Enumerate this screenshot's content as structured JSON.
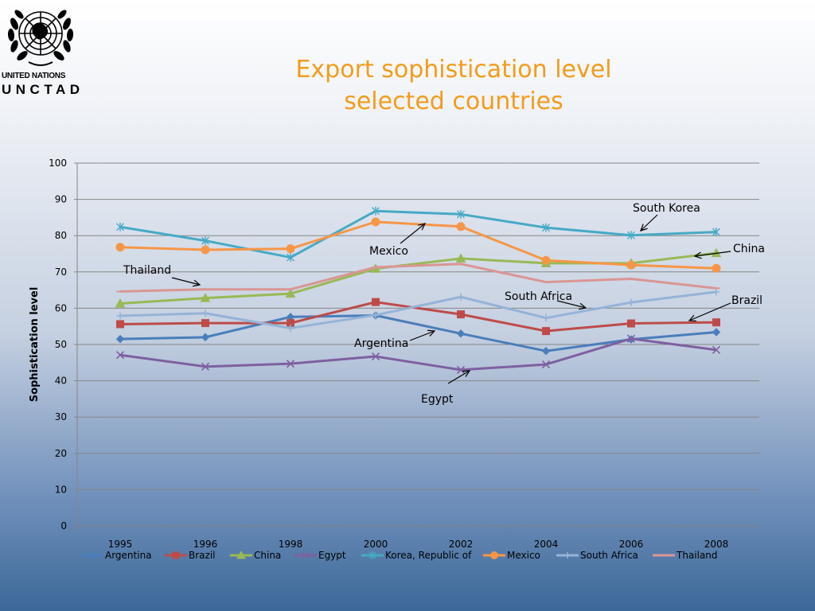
{
  "logo": {
    "org_line": "UNITED NATIONS",
    "acronym": "UNCTAD"
  },
  "colors": {
    "title": "#f39c1a"
  },
  "chart_data": {
    "type": "line",
    "title": [
      "Export sophistication level",
      "selected countries"
    ],
    "xlabel": "",
    "ylabel": "Sophistication level",
    "x": [
      "1995",
      "1996",
      "1998",
      "2000",
      "2002",
      "2004",
      "2006",
      "2008"
    ],
    "ylim": [
      0,
      100
    ],
    "yticks": [
      "0",
      "10",
      "20",
      "30",
      "40",
      "50",
      "60",
      "70",
      "80",
      "90",
      "100"
    ],
    "grid": true,
    "legend_position": "bottom",
    "series": [
      {
        "name": "Argentina",
        "color": "#4a7ebb",
        "marker": "diamond",
        "values": [
          51.5,
          52.0,
          57.6,
          58.0,
          53.0,
          48.2,
          51.4,
          53.4
        ]
      },
      {
        "name": "Brazil",
        "color": "#be4b48",
        "marker": "square",
        "values": [
          55.6,
          55.9,
          55.9,
          61.7,
          58.3,
          53.7,
          55.8,
          56.1
        ]
      },
      {
        "name": "China",
        "color": "#98b954",
        "marker": "triangle",
        "values": [
          61.3,
          62.8,
          64.0,
          70.9,
          73.7,
          72.4,
          72.4,
          75.2
        ]
      },
      {
        "name": "Egypt",
        "color": "#7d60a0",
        "marker": "x",
        "values": [
          47.1,
          43.9,
          44.7,
          46.7,
          43.0,
          44.5,
          51.6,
          48.5
        ]
      },
      {
        "name": "Korea, Republic of",
        "color": "#46aac5",
        "marker": "star",
        "values": [
          82.4,
          78.6,
          74.0,
          86.8,
          85.9,
          82.2,
          80.1,
          81.0
        ]
      },
      {
        "name": "Mexico",
        "color": "#f79646",
        "marker": "circle",
        "values": [
          76.8,
          76.1,
          76.4,
          83.8,
          82.5,
          73.2,
          71.9,
          71.0
        ]
      },
      {
        "name": "South Africa",
        "color": "#95b3d7",
        "marker": "plus",
        "values": [
          57.9,
          58.6,
          54.5,
          58.1,
          63.1,
          57.3,
          61.6,
          64.5
        ]
      },
      {
        "name": "Thailand",
        "color": "#d99694",
        "marker": "dash",
        "values": [
          64.6,
          65.2,
          65.2,
          71.3,
          72.2,
          67.2,
          68.1,
          65.5
        ]
      }
    ],
    "annotations": [
      {
        "text": "South Korea",
        "series": "Korea, Republic of",
        "at": "2006"
      },
      {
        "text": "China",
        "series": "China",
        "at": "2008"
      },
      {
        "text": "Mexico",
        "series": "Mexico",
        "at": "2002"
      },
      {
        "text": "Thailand",
        "series": "Thailand",
        "at": "1996"
      },
      {
        "text": "South Africa",
        "series": "South Africa",
        "at": "2004"
      },
      {
        "text": "Brazil",
        "series": "Brazil",
        "at": "2008"
      },
      {
        "text": "Argentina",
        "series": "Argentina",
        "at": "2002"
      },
      {
        "text": "Egypt",
        "series": "Egypt",
        "at": "2002"
      }
    ]
  }
}
